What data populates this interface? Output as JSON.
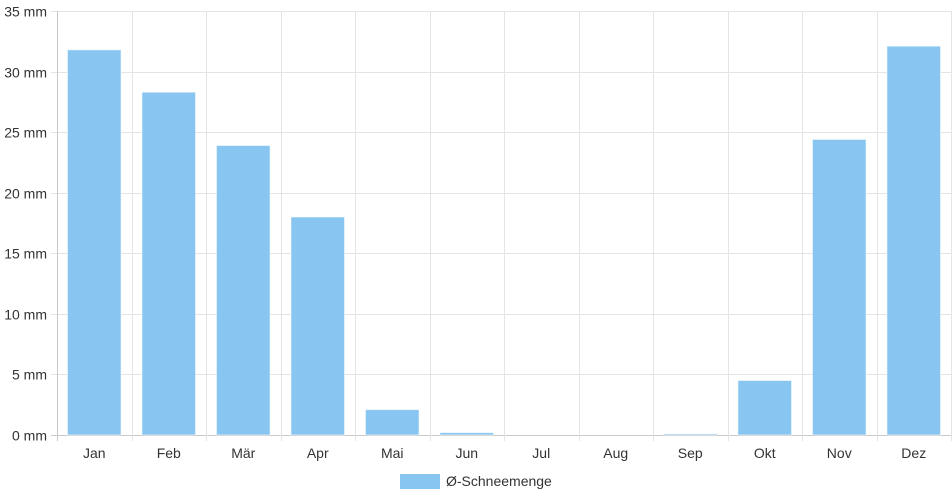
{
  "chart_data": {
    "type": "bar",
    "categories": [
      "Jan",
      "Feb",
      "Mär",
      "Apr",
      "Mai",
      "Jun",
      "Jul",
      "Aug",
      "Sep",
      "Okt",
      "Nov",
      "Dez"
    ],
    "series": [
      {
        "name": "Ø-Schneemenge",
        "values": [
          31.8,
          28.3,
          23.9,
          18.0,
          2.1,
          0.2,
          0,
          0,
          0.1,
          4.5,
          24.4,
          32.1
        ],
        "color": "#88c6f1"
      }
    ],
    "y_ticks": [
      "0 mm",
      "5 mm",
      "10 mm",
      "15 mm",
      "20 mm",
      "25 mm",
      "30 mm",
      "35 mm"
    ],
    "ylim": [
      0,
      35
    ],
    "y_unit": "mm",
    "grid": true,
    "legend_position": "bottom-center",
    "title": "",
    "xlabel": "",
    "ylabel": ""
  }
}
